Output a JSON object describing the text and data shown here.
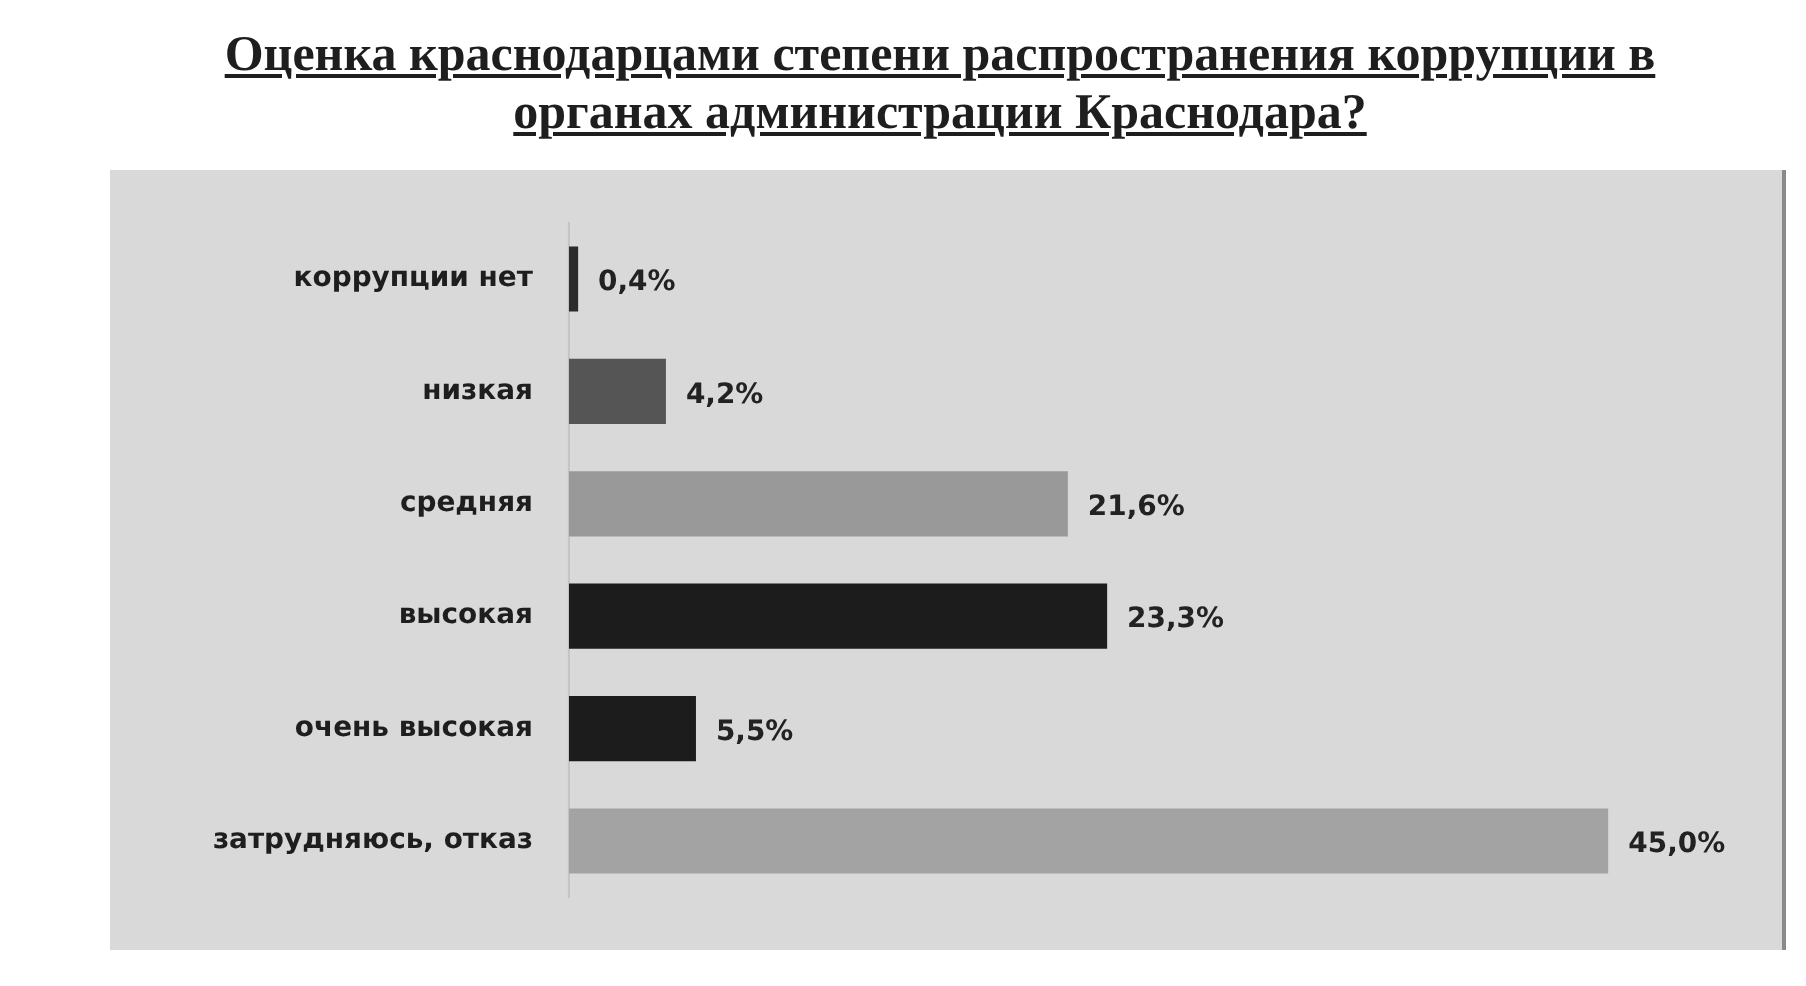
{
  "chart_data": {
    "type": "bar",
    "orientation": "horizontal",
    "title": "Оценка краснодарцами степени распространения коррупции в органах администрации Краснодара?",
    "categories": [
      "коррупции нет",
      "низкая",
      "средняя",
      "высокая",
      "очень высокая",
      "затрудняюсь, отказ"
    ],
    "values": [
      0.4,
      4.2,
      21.6,
      23.3,
      5.5,
      45.0
    ],
    "colors": [
      "#2b2b2b",
      "#555555",
      "#999999",
      "#1c1c1c",
      "#1c1c1c",
      "#a3a3a3"
    ],
    "value_labels": [
      "0,4%",
      "4,2%",
      "21,6%",
      "23,3%",
      "5,5%",
      "45,0%"
    ]
  }
}
